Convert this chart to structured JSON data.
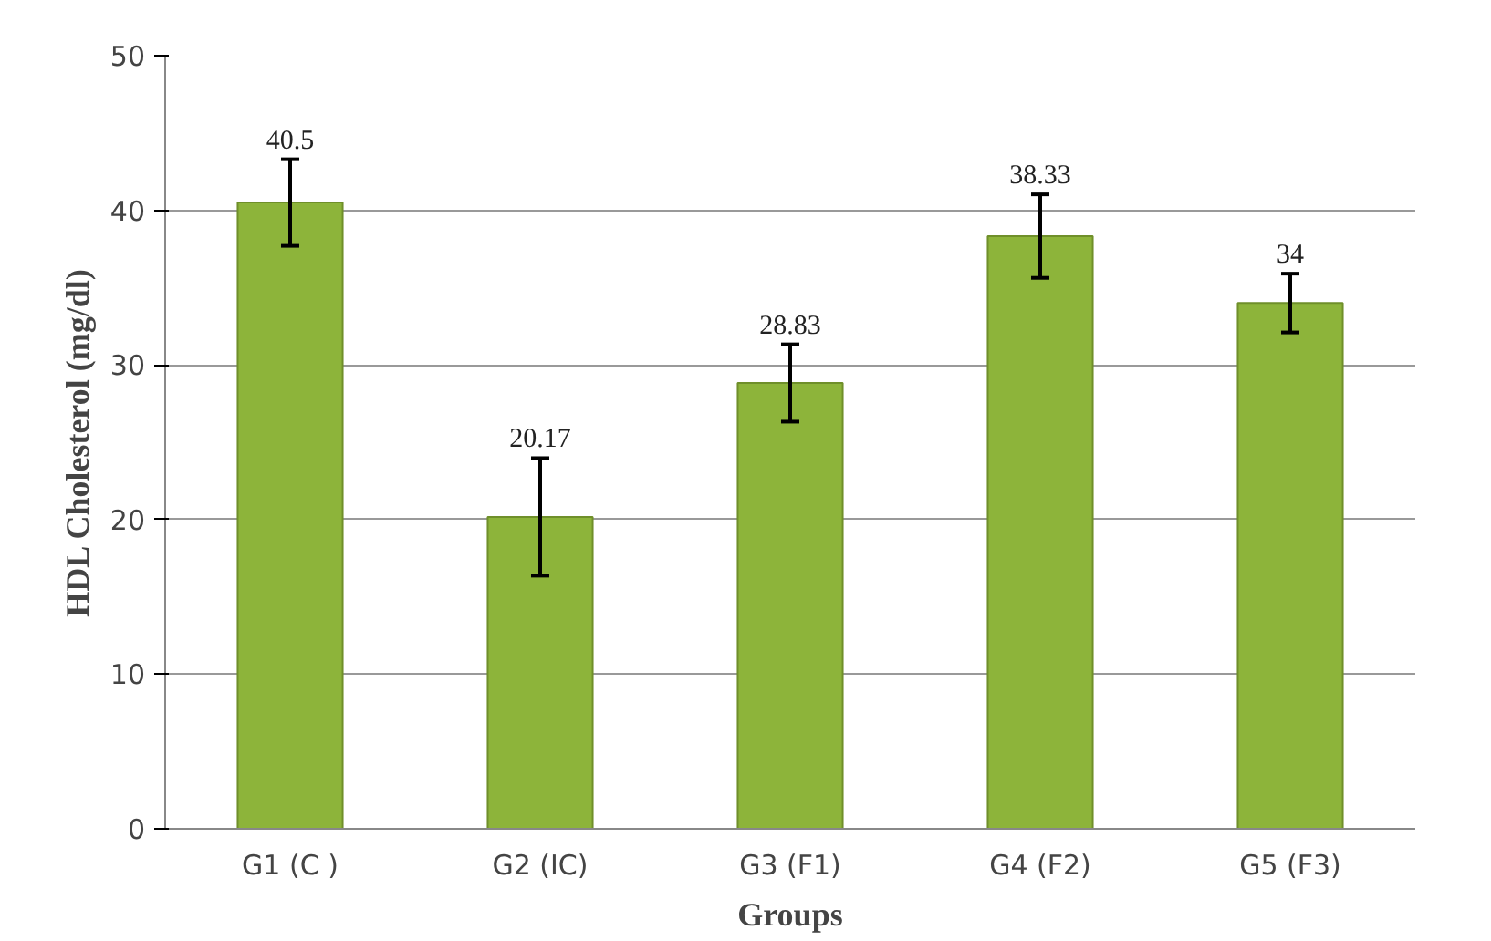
{
  "chart_data": {
    "type": "bar",
    "xlabel": "Groups",
    "ylabel": "HDL Cholesterol (mg/dl)",
    "categories": [
      "G1 (C )",
      "G2 (IC)",
      "G3 (F1)",
      "G4 (F2)",
      "G5 (F3)"
    ],
    "values": [
      40.5,
      20.17,
      28.83,
      38.33,
      34
    ],
    "errors": [
      2.8,
      3.8,
      2.5,
      2.7,
      1.9
    ],
    "color": "#8db43a",
    "data_labels": true,
    "ylim": [
      0,
      50
    ],
    "yticks": [
      0,
      10,
      20,
      30,
      40,
      50
    ],
    "grid": "y"
  }
}
